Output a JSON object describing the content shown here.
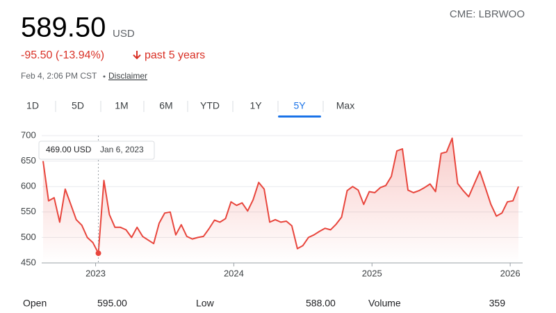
{
  "header": {
    "price": "589.50",
    "currency": "USD",
    "change": "-95.50 (-13.94%)",
    "period": "past 5 years",
    "timestamp": "Feb 4, 2:06 PM CST",
    "disclaimer": "Disclaimer",
    "symbol": "CME: LBRWOO"
  },
  "tabs": {
    "items": [
      "1D",
      "5D",
      "1M",
      "6M",
      "YTD",
      "1Y",
      "5Y",
      "Max"
    ],
    "active": 6
  },
  "chart_data": {
    "type": "line",
    "color": "#e8453c",
    "grid": true,
    "x": [
      2022.62,
      2022.66,
      2022.7,
      2022.74,
      2022.78,
      2022.82,
      2022.86,
      2022.9,
      2022.94,
      2022.98,
      2023.02,
      2023.06,
      2023.1,
      2023.14,
      2023.18,
      2023.22,
      2023.26,
      2023.3,
      2023.34,
      2023.38,
      2023.42,
      2023.46,
      2023.5,
      2023.54,
      2023.58,
      2023.62,
      2023.66,
      2023.7,
      2023.74,
      2023.78,
      2023.82,
      2023.86,
      2023.9,
      2023.94,
      2023.98,
      2024.02,
      2024.06,
      2024.1,
      2024.14,
      2024.18,
      2024.22,
      2024.26,
      2024.3,
      2024.34,
      2024.38,
      2024.42,
      2024.46,
      2024.5,
      2024.54,
      2024.58,
      2024.62,
      2024.66,
      2024.7,
      2024.74,
      2024.78,
      2024.82,
      2024.86,
      2024.9,
      2024.94,
      2024.98,
      2025.02,
      2025.06,
      2025.1,
      2025.14,
      2025.18,
      2025.22,
      2025.26,
      2025.3,
      2025.34,
      2025.38,
      2025.42,
      2025.46,
      2025.5,
      2025.54,
      2025.58,
      2025.62,
      2025.66,
      2025.7,
      2025.74,
      2025.78,
      2025.82,
      2025.86,
      2025.9,
      2025.94,
      2025.98,
      2026.02,
      2026.06
    ],
    "values": [
      650,
      572,
      578,
      530,
      595,
      565,
      535,
      524,
      500,
      490,
      469,
      612,
      545,
      520,
      520,
      515,
      500,
      520,
      502,
      495,
      488,
      528,
      548,
      550,
      505,
      525,
      502,
      497,
      500,
      502,
      517,
      534,
      530,
      537,
      570,
      563,
      568,
      552,
      574,
      608,
      595,
      530,
      535,
      530,
      532,
      523,
      478,
      484,
      500,
      505,
      512,
      518,
      515,
      526,
      540,
      592,
      600,
      593,
      565,
      590,
      588,
      598,
      602,
      620,
      670,
      674,
      593,
      588,
      592,
      598,
      605,
      590,
      665,
      668,
      695,
      606,
      592,
      580,
      605,
      630,
      598,
      565,
      542,
      548,
      570,
      572,
      600
    ],
    "xlim": [
      2022.61,
      2026.09
    ],
    "xticks": [
      2023,
      2024,
      2025,
      2026
    ],
    "ylim": [
      450,
      700
    ],
    "yticks": [
      450,
      500,
      550,
      600,
      650,
      700
    ],
    "tooltip": {
      "label": "469.00 USD",
      "date": "Jan 6, 2023",
      "value": 469,
      "x": 2023.02
    }
  },
  "stats": [
    {
      "label": "Open",
      "value": "595.00"
    },
    {
      "label": "Low",
      "value": "588.00"
    },
    {
      "label": "Volume",
      "value": "359"
    }
  ]
}
